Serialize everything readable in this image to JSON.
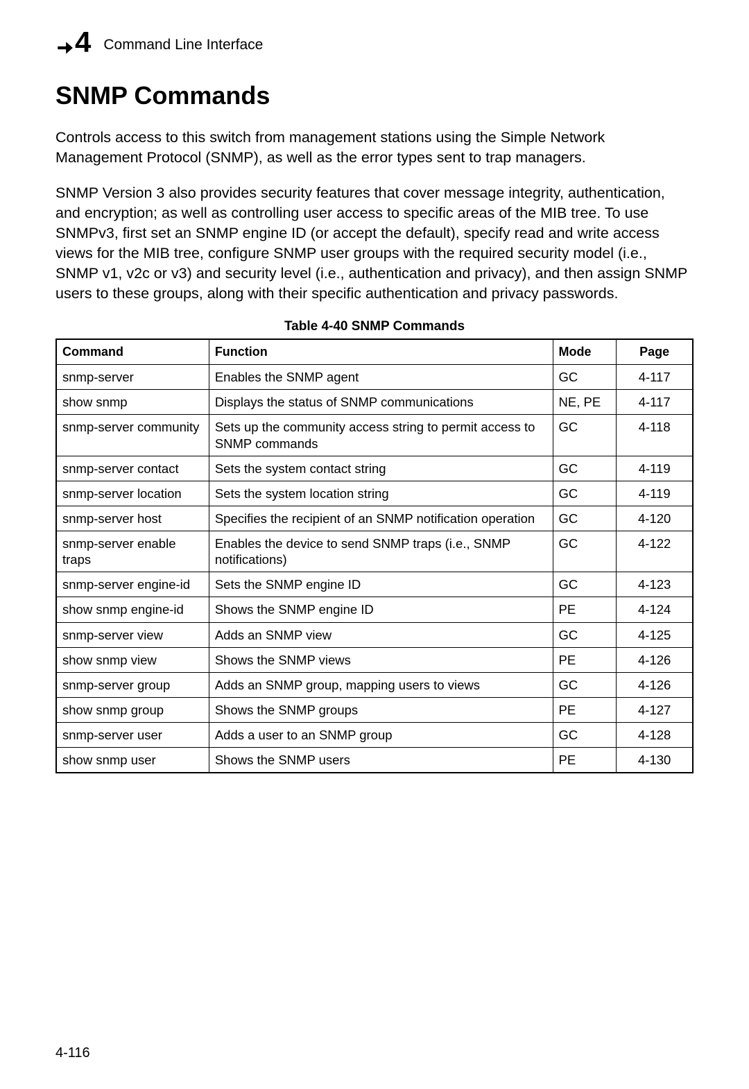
{
  "header": {
    "chapter_number": "4",
    "section_title": "Command Line Interface"
  },
  "heading": "SNMP Commands",
  "para1": "Controls access to this switch from management stations using the Simple Network Management Protocol (SNMP), as well as the error types sent to trap managers.",
  "para2": "SNMP Version 3 also provides security features that cover message integrity, authentication, and encryption; as well as controlling user access to specific areas of the MIB tree. To use SNMPv3, first set an SNMP engine ID (or accept the default), specify read and write access views for the MIB tree, configure SNMP user groups with the required security model (i.e., SNMP v1, v2c or v3) and security level (i.e., authentication and privacy), and then assign SNMP users to these groups, along with their specific authentication and privacy passwords.",
  "table": {
    "caption": "Table 4-40  SNMP Commands",
    "columns": {
      "c1": "Command",
      "c2": "Function",
      "c3": "Mode",
      "c4": "Page"
    },
    "col_widths": [
      "24%",
      "54%",
      "10%",
      "12%"
    ],
    "rows": [
      {
        "command": "snmp-server",
        "function": "Enables the SNMP agent",
        "mode": "GC",
        "page": "4-117"
      },
      {
        "command": "show snmp",
        "function": "Displays the status of SNMP communications",
        "mode": "NE, PE",
        "page": "4-117"
      },
      {
        "command": "snmp-server community",
        "function": "Sets up the community access string to permit access to SNMP commands",
        "mode": "GC",
        "page": "4-118"
      },
      {
        "command": "snmp-server contact",
        "function": "Sets the system contact string",
        "mode": "GC",
        "page": "4-119"
      },
      {
        "command": "snmp-server location",
        "function": "Sets the system location string",
        "mode": "GC",
        "page": "4-119"
      },
      {
        "command": "snmp-server host",
        "function": "Specifies the recipient of an SNMP notification operation",
        "mode": "GC",
        "page": "4-120"
      },
      {
        "command": "snmp-server enable traps",
        "function": "Enables the device to send SNMP traps (i.e., SNMP notifications)",
        "mode": "GC",
        "page": "4-122"
      },
      {
        "command": "snmp-server engine-id",
        "function": "Sets the SNMP engine ID",
        "mode": "GC",
        "page": "4-123"
      },
      {
        "command": "show snmp engine-id",
        "function": "Shows the SNMP engine ID",
        "mode": "PE",
        "page": "4-124"
      },
      {
        "command": "snmp-server view",
        "function": "Adds an SNMP view",
        "mode": "GC",
        "page": "4-125"
      },
      {
        "command": "show snmp view",
        "function": "Shows the SNMP views",
        "mode": "PE",
        "page": "4-126"
      },
      {
        "command": "snmp-server group",
        "function": "Adds an SNMP group, mapping users to views",
        "mode": "GC",
        "page": "4-126"
      },
      {
        "command": "show snmp group",
        "function": "Shows the SNMP groups",
        "mode": "PE",
        "page": "4-127"
      },
      {
        "command": "snmp-server user",
        "function": "Adds a user to an SNMP group",
        "mode": "GC",
        "page": "4-128"
      },
      {
        "command": "show snmp user",
        "function": "Shows the SNMP users",
        "mode": "PE",
        "page": "4-130"
      }
    ]
  },
  "page_number": "4-116",
  "colors": {
    "text": "#000000",
    "background": "#ffffff",
    "border": "#000000"
  }
}
